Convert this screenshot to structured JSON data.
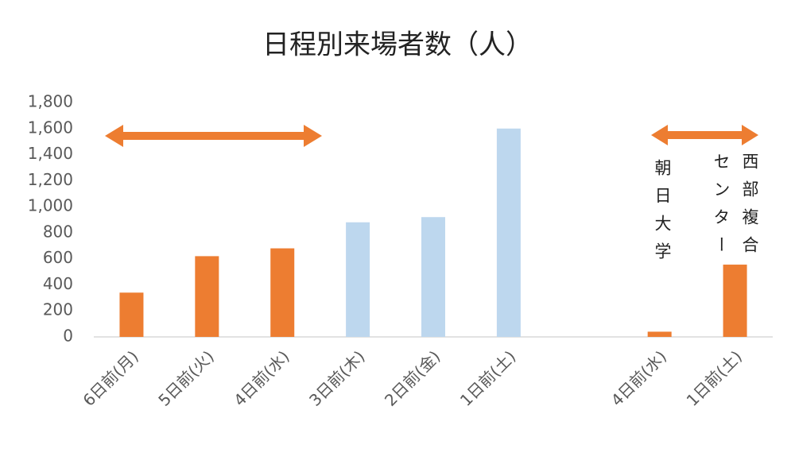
{
  "chart_data": {
    "type": "bar",
    "title": "日程別来場者数（人）",
    "categories": [
      "6日前(月)",
      "5日前(火)",
      "4日前(水)",
      "3日前(木)",
      "2日前(金)",
      "1日前(土)",
      null,
      "4日前(水)",
      "1日前(土)"
    ],
    "values": [
      340,
      620,
      680,
      880,
      920,
      1600,
      null,
      40,
      555
    ],
    "colors": [
      "#ed7d31",
      "#ed7d31",
      "#ed7d31",
      "#bdd7ee",
      "#bdd7ee",
      "#bdd7ee",
      null,
      "#ed7d31",
      "#ed7d31"
    ],
    "ylim": [
      0,
      1800
    ],
    "yticks": [
      0,
      200,
      400,
      600,
      800,
      {
        "value": 1000,
        "label": "1,000"
      },
      {
        "value": 1200,
        "label": "1,200"
      },
      {
        "value": 1400,
        "label": "1,400"
      },
      {
        "value": 1600,
        "label": "1,600"
      },
      {
        "value": 1800,
        "label": "1,800"
      }
    ],
    "grid": false,
    "annotations": [
      "朝日大学",
      "西部複合センター"
    ]
  }
}
